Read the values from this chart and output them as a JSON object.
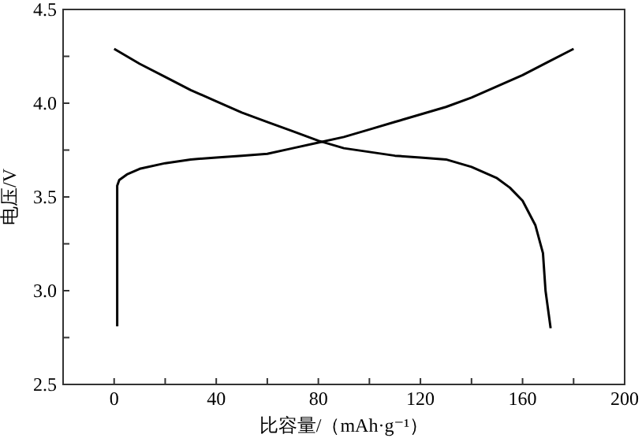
{
  "chart_data": {
    "type": "line",
    "xlabel": "比容量/（mAh·g⁻¹）",
    "ylabel": "电压/V",
    "xlim": [
      -20,
      200
    ],
    "xticks": [
      {
        "value": -20,
        "label": null
      },
      0,
      {
        "value": 20,
        "label": null
      },
      40,
      {
        "value": 60,
        "label": null
      },
      80,
      {
        "value": 100,
        "label": null
      },
      120,
      {
        "value": 140,
        "label": null
      },
      160,
      {
        "value": 180,
        "label": null
      },
      200
    ],
    "ylim": [
      2.5,
      4.5
    ],
    "yticks": [
      2.5,
      {
        "value": 2.75,
        "label": null
      },
      "3.0",
      {
        "value": 3.25,
        "label": null
      },
      3.5,
      {
        "value": 3.75,
        "label": null
      },
      "4.0",
      {
        "value": 4.25,
        "label": null
      },
      4.5
    ],
    "grid": false,
    "line_style": "solid",
    "marker": "none",
    "series": [
      {
        "color": "#000000",
        "x": [
          1.2,
          1.2,
          2,
          5,
          10,
          20,
          30,
          40,
          50,
          60,
          70,
          80,
          90,
          100,
          110,
          120,
          130,
          140,
          150,
          160,
          170,
          180
        ],
        "values": [
          2.81,
          3.56,
          3.59,
          3.62,
          3.65,
          3.68,
          3.7,
          3.71,
          3.72,
          3.73,
          3.76,
          3.79,
          3.82,
          3.86,
          3.9,
          3.94,
          3.98,
          4.03,
          4.09,
          4.15,
          4.22,
          4.29
        ]
      },
      {
        "color": "#000000",
        "x": [
          0,
          10,
          20,
          30,
          40,
          50,
          60,
          70,
          80,
          90,
          100,
          110,
          120,
          130,
          140,
          150,
          155,
          160,
          165,
          168,
          169,
          171
        ],
        "values": [
          4.29,
          4.21,
          4.14,
          4.07,
          4.01,
          3.95,
          3.9,
          3.85,
          3.8,
          3.76,
          3.74,
          3.72,
          3.71,
          3.7,
          3.66,
          3.6,
          3.55,
          3.48,
          3.35,
          3.2,
          3.0,
          2.8
        ]
      }
    ]
  }
}
